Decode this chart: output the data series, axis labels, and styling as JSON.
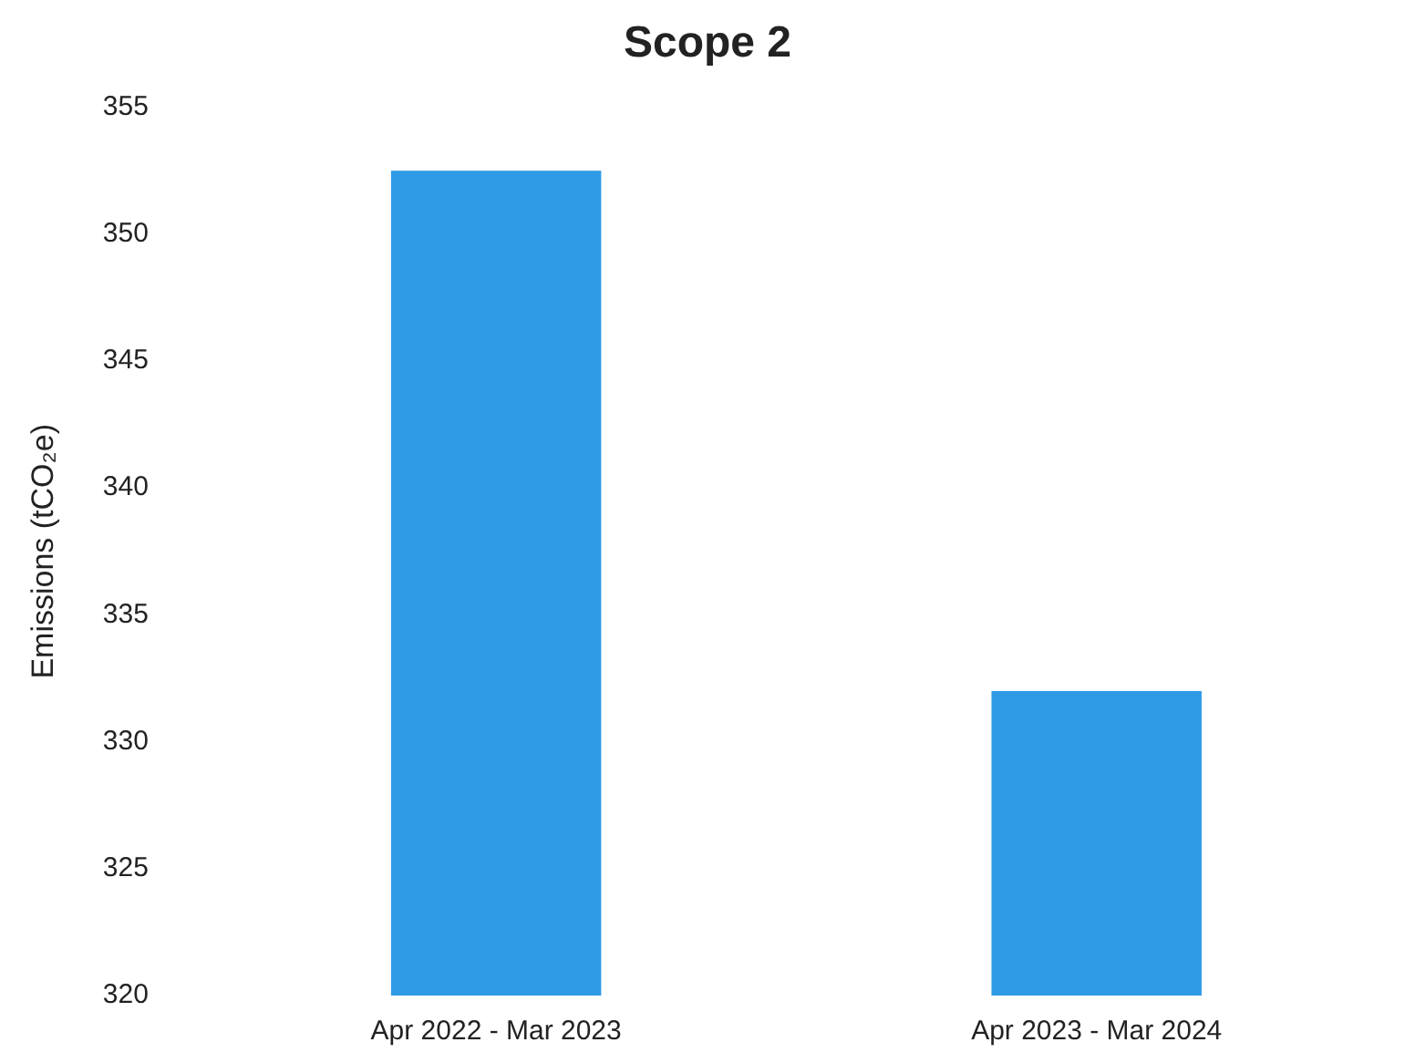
{
  "chart_data": {
    "type": "bar",
    "title": "Scope 2",
    "ylabel": "Emissions (tCO₂e)",
    "categories": [
      "Apr 2022 - Mar 2023",
      "Apr 2023 - Mar 2024"
    ],
    "values": [
      352.5,
      332.0
    ],
    "color": "#2f9ae6",
    "ylim": [
      320,
      355
    ],
    "yticks": [
      320,
      325,
      330,
      335,
      340,
      345,
      350,
      355
    ]
  }
}
